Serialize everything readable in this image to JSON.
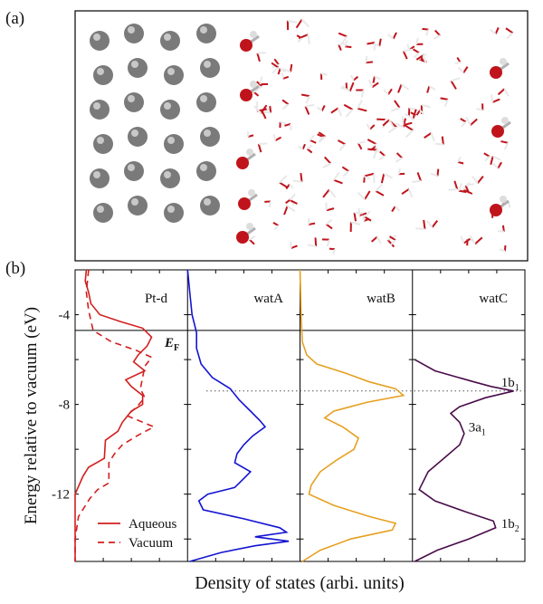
{
  "panel_a": {
    "label": "(a)",
    "colors": {
      "pt": "#7a7a7a",
      "oxygen": "#c0141c",
      "hydrogen": "#e8e8e8",
      "bond": "#b0b0b0"
    }
  },
  "chart_data": {
    "type": "line",
    "panel_label": "(b)",
    "xlabel": "Density of states (arbi. units)",
    "ylabel": "Energy relative to vacuum (eV)",
    "ylim": [
      -15,
      -2
    ],
    "yticks": [
      -4,
      -8,
      -12
    ],
    "ytick_labels": [
      "-4",
      "-8",
      "-12"
    ],
    "fermi_level": {
      "value": -4.7,
      "label": "E",
      "subscript": "F"
    },
    "dotted_reference": -7.4,
    "grid": false,
    "subplots": [
      {
        "title": "Pt-d",
        "series": [
          {
            "name": "Aqueous",
            "style": "solid",
            "color": "#d21f1f",
            "points": [
              [
                -2,
                0.1
              ],
              [
                -2.5,
                0.09
              ],
              [
                -3,
                0.12
              ],
              [
                -3.5,
                0.14
              ],
              [
                -4,
                0.22
              ],
              [
                -4.3,
                0.4
              ],
              [
                -4.6,
                0.6
              ],
              [
                -5,
                0.68
              ],
              [
                -5.4,
                0.64
              ],
              [
                -5.8,
                0.56
              ],
              [
                -6.1,
                0.52
              ],
              [
                -6.5,
                0.62
              ],
              [
                -6.9,
                0.45
              ],
              [
                -7.2,
                0.5
              ],
              [
                -7.6,
                0.6
              ],
              [
                -8,
                0.6
              ],
              [
                -8.3,
                0.5
              ],
              [
                -8.8,
                0.42
              ],
              [
                -9.2,
                0.38
              ],
              [
                -9.6,
                0.27
              ],
              [
                -10.4,
                0.26
              ],
              [
                -10.8,
                0.12
              ],
              [
                -11.2,
                0.07
              ],
              [
                -12,
                0
              ],
              [
                -15,
                0
              ]
            ]
          },
          {
            "name": "Vacuum",
            "style": "dashed",
            "color": "#d21f1f",
            "points": [
              [
                -2,
                0.12
              ],
              [
                -3,
                0.1
              ],
              [
                -3.8,
                0.12
              ],
              [
                -4.7,
                0.16
              ],
              [
                -5.2,
                0.32
              ],
              [
                -5.6,
                0.55
              ],
              [
                -5.9,
                0.68
              ],
              [
                -6.3,
                0.62
              ],
              [
                -6.8,
                0.6
              ],
              [
                -7.3,
                0.58
              ],
              [
                -7.7,
                0.62
              ],
              [
                -8.1,
                0.55
              ],
              [
                -8.5,
                0.46
              ],
              [
                -9,
                0.7
              ],
              [
                -9.4,
                0.55
              ],
              [
                -9.8,
                0.42
              ],
              [
                -10.2,
                0.35
              ],
              [
                -10.6,
                0.3
              ],
              [
                -11.5,
                0.3
              ],
              [
                -11.8,
                0.2
              ],
              [
                -12.2,
                0.13
              ],
              [
                -13,
                0.03
              ],
              [
                -14,
                0
              ],
              [
                -15,
                0
              ]
            ]
          }
        ],
        "legend": {
          "placement": "bottom-left",
          "entries": [
            "Aqueous",
            "Vacuum"
          ]
        }
      },
      {
        "title": "watA",
        "series": [
          {
            "name": "watA",
            "style": "solid",
            "color": "#1414d2",
            "points": [
              [
                -2,
                0
              ],
              [
                -3,
                0.02
              ],
              [
                -4,
                0.04
              ],
              [
                -4.8,
                0.08
              ],
              [
                -5.5,
                0.08
              ],
              [
                -6.2,
                0.12
              ],
              [
                -6.8,
                0.22
              ],
              [
                -7.3,
                0.38
              ],
              [
                -7.8,
                0.46
              ],
              [
                -8.3,
                0.56
              ],
              [
                -8.7,
                0.64
              ],
              [
                -9,
                0.69
              ],
              [
                -9.4,
                0.58
              ],
              [
                -9.8,
                0.5
              ],
              [
                -10.2,
                0.44
              ],
              [
                -10.6,
                0.42
              ],
              [
                -11,
                0.56
              ],
              [
                -11.3,
                0.5
              ],
              [
                -11.7,
                0.42
              ],
              [
                -12,
                0.18
              ],
              [
                -12.3,
                0.1
              ],
              [
                -12.7,
                0.14
              ],
              [
                -13.1,
                0.5
              ],
              [
                -13.5,
                0.82
              ],
              [
                -13.7,
                0.88
              ],
              [
                -13.9,
                0.6
              ],
              [
                -14.1,
                0.9
              ],
              [
                -14.3,
                0.6
              ],
              [
                -14.6,
                0.3
              ],
              [
                -15,
                0.02
              ]
            ]
          }
        ]
      },
      {
        "title": "watB",
        "series": [
          {
            "name": "watB",
            "style": "solid",
            "color": "#e6a020",
            "points": [
              [
                -2,
                0
              ],
              [
                -4,
                0.01
              ],
              [
                -5.2,
                0.02
              ],
              [
                -5.8,
                0.06
              ],
              [
                -6.2,
                0.15
              ],
              [
                -6.6,
                0.4
              ],
              [
                -7,
                0.62
              ],
              [
                -7.3,
                0.85
              ],
              [
                -7.6,
                0.92
              ],
              [
                -7.9,
                0.6
              ],
              [
                -8.3,
                0.3
              ],
              [
                -8.6,
                0.22
              ],
              [
                -9,
                0.38
              ],
              [
                -9.5,
                0.52
              ],
              [
                -10,
                0.48
              ],
              [
                -10.5,
                0.32
              ],
              [
                -11,
                0.18
              ],
              [
                -11.6,
                0.1
              ],
              [
                -12,
                0.08
              ],
              [
                -12.5,
                0.3
              ],
              [
                -13,
                0.62
              ],
              [
                -13.3,
                0.85
              ],
              [
                -13.6,
                0.82
              ],
              [
                -14,
                0.45
              ],
              [
                -14.5,
                0.18
              ],
              [
                -15,
                0.02
              ]
            ]
          }
        ]
      },
      {
        "title": "watC",
        "series": [
          {
            "name": "watC",
            "style": "solid",
            "color": "#4a0d4a",
            "points": [
              [
                -6,
                0.02
              ],
              [
                -6.5,
                0.2
              ],
              [
                -7,
                0.55
              ],
              [
                -7.2,
                0.7
              ],
              [
                -7.4,
                0.9
              ],
              [
                -7.7,
                0.65
              ],
              [
                -8.1,
                0.42
              ],
              [
                -8.4,
                0.34
              ],
              [
                -8.8,
                0.42
              ],
              [
                -9.3,
                0.46
              ],
              [
                -9.8,
                0.42
              ],
              [
                -10.4,
                0.28
              ],
              [
                -11,
                0.14
              ],
              [
                -11.8,
                0.06
              ],
              [
                -12.3,
                0.2
              ],
              [
                -12.8,
                0.48
              ],
              [
                -13.2,
                0.72
              ],
              [
                -13.5,
                0.74
              ],
              [
                -14,
                0.5
              ],
              [
                -14.5,
                0.22
              ],
              [
                -15,
                0.02
              ]
            ]
          }
        ],
        "annotations": [
          {
            "text": "1b",
            "subscript": "1",
            "energy": -7.0
          },
          {
            "text": "3a",
            "subscript": "1",
            "energy": -9.0
          },
          {
            "text": "1b",
            "subscript": "2",
            "energy": -13.3
          }
        ]
      }
    ]
  }
}
